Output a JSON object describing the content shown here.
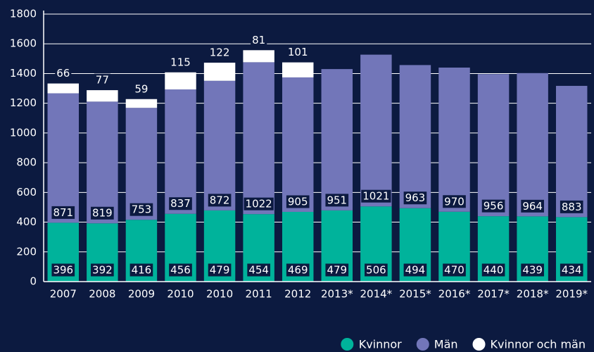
{
  "chart_data": {
    "type": "stacked_bar",
    "categories": [
      "2007",
      "2008",
      "2009",
      "2010",
      "2010",
      "2011",
      "2012",
      "2013*",
      "2014*",
      "2015*",
      "2016*",
      "2017*",
      "2018*",
      "2019*"
    ],
    "series": [
      {
        "name": "Kvinnor",
        "color": "#00b39b",
        "values": [
          396,
          392,
          416,
          456,
          479,
          454,
          469,
          479,
          506,
          494,
          470,
          440,
          439,
          434
        ]
      },
      {
        "name": "Män",
        "color": "#7276b9",
        "values": [
          871,
          819,
          753,
          837,
          872,
          1022,
          905,
          951,
          1021,
          963,
          970,
          956,
          964,
          883
        ]
      },
      {
        "name": "Kvinnor och män",
        "color": "#ffffff",
        "values": [
          66,
          77,
          59,
          115,
          122,
          81,
          101,
          null,
          null,
          null,
          null,
          null,
          null,
          null
        ]
      }
    ],
    "ylim": [
      0,
      1800
    ],
    "yticks": [
      0,
      200,
      400,
      600,
      800,
      1000,
      1200,
      1400,
      1600,
      1800
    ],
    "grid": true
  }
}
